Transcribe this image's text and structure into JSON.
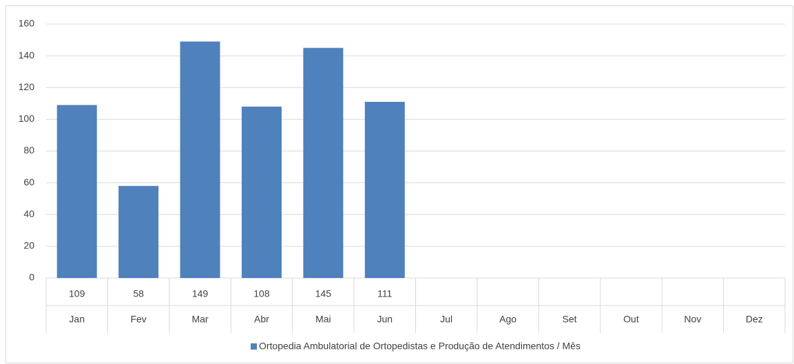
{
  "chart_data": {
    "type": "bar",
    "categories": [
      "Jan",
      "Fev",
      "Mar",
      "Abr",
      "Mai",
      "Jun",
      "Jul",
      "Ago",
      "Set",
      "Out",
      "Nov",
      "Dez"
    ],
    "series": [
      {
        "name": "Ortopedia Ambulatorial de Ortopedistas e Produção de Atendimentos / Mês",
        "color": "#4f81bd",
        "values": [
          109,
          58,
          149,
          108,
          145,
          111,
          null,
          null,
          null,
          null,
          null,
          null
        ]
      }
    ],
    "ylim": [
      0,
      160
    ],
    "yticks": [
      0,
      20,
      40,
      60,
      80,
      100,
      120,
      140,
      160
    ],
    "grid": true,
    "legend": "bottom"
  }
}
